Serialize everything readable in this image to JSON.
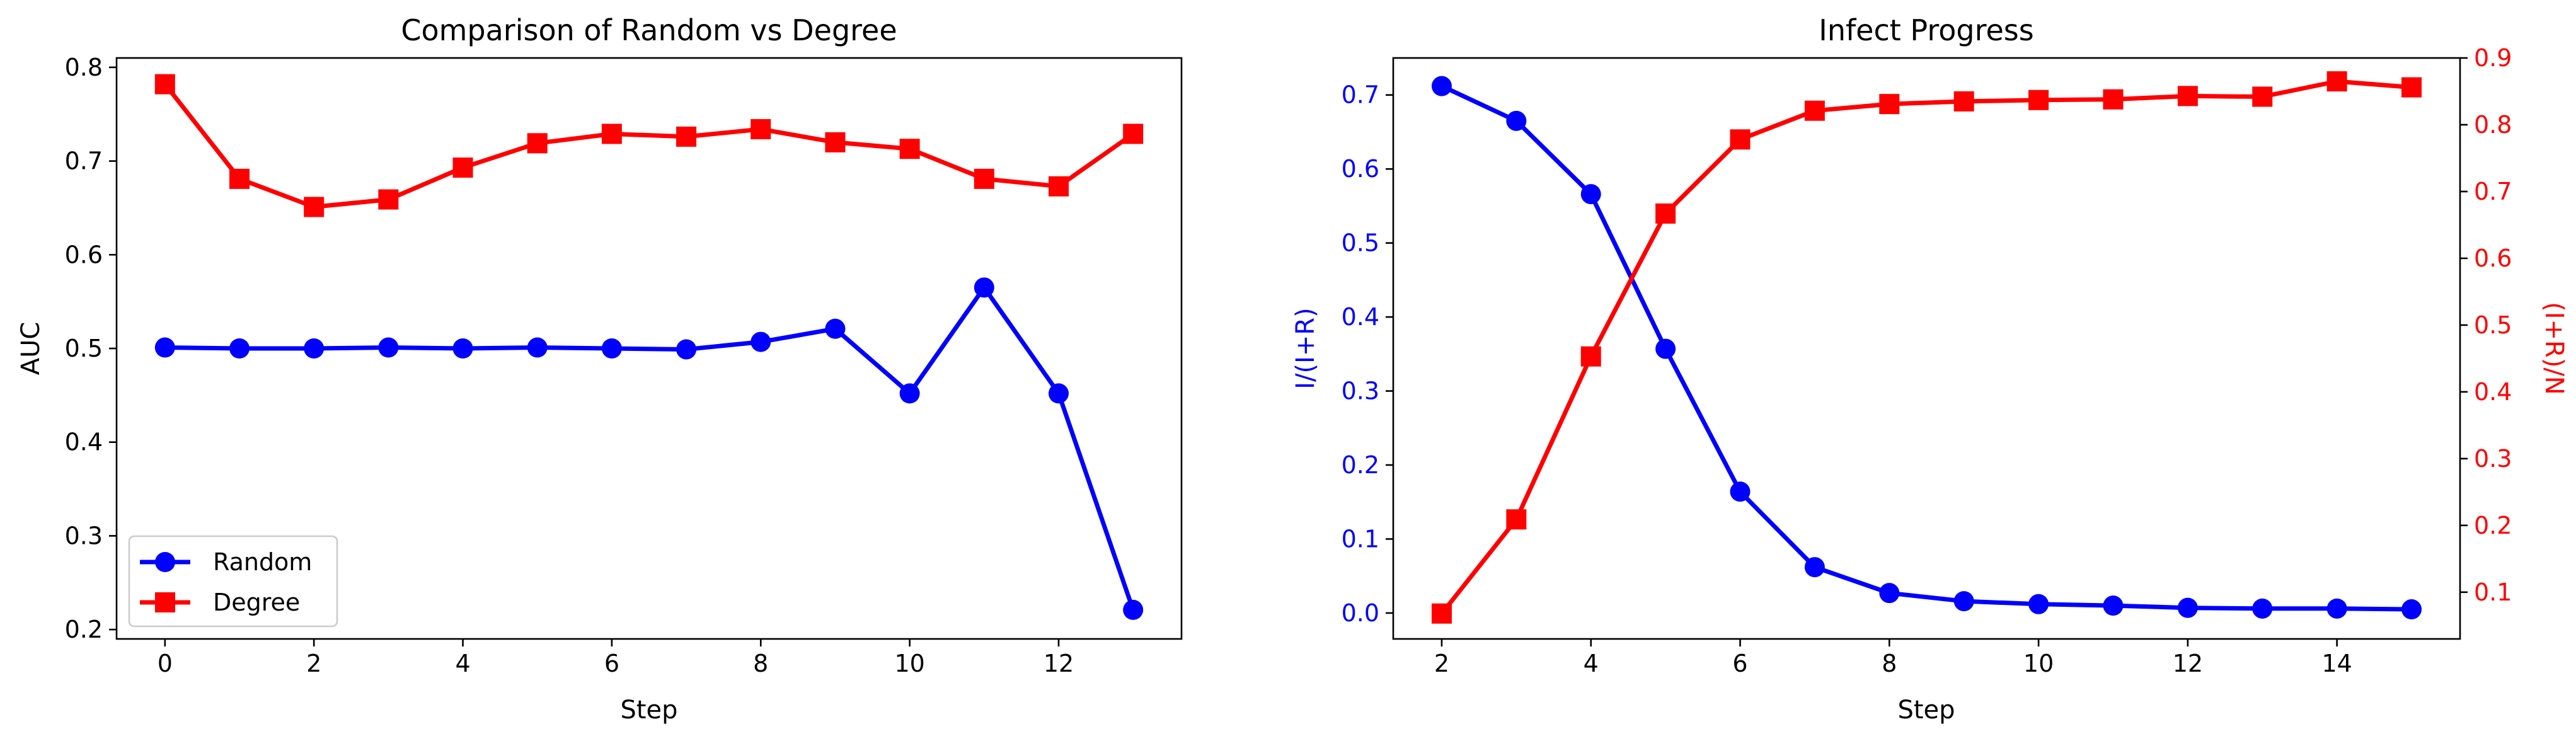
{
  "chart_data": [
    {
      "type": "line",
      "title": "Comparison of Random vs Degree",
      "xlabel": "Step",
      "ylabel": "AUC",
      "xlim": [
        -0.65,
        13.65
      ],
      "ylim": [
        0.19,
        0.81
      ],
      "xticks": [
        "0",
        "2",
        "4",
        "6",
        "8",
        "10",
        "12"
      ],
      "yticks": [
        "0.2",
        "0.3",
        "0.4",
        "0.5",
        "0.6",
        "0.7",
        "0.8"
      ],
      "legend": "lower-left",
      "grid": false,
      "x": [
        0,
        1,
        2,
        3,
        4,
        5,
        6,
        7,
        8,
        9,
        10,
        11,
        12,
        13
      ],
      "series": [
        {
          "name": "Random",
          "color": "#0000ff",
          "marker": "circle",
          "values": [
            0.501,
            0.5,
            0.5,
            0.501,
            0.5,
            0.501,
            0.5,
            0.499,
            0.507,
            0.521,
            0.452,
            0.565,
            0.452,
            0.221
          ]
        },
        {
          "name": "Degree",
          "color": "#ff0000",
          "marker": "square",
          "values": [
            0.782,
            0.681,
            0.651,
            0.659,
            0.693,
            0.719,
            0.729,
            0.726,
            0.734,
            0.72,
            0.713,
            0.681,
            0.673,
            0.729
          ]
        }
      ]
    },
    {
      "type": "line",
      "title": "Infect Progress",
      "xlabel": "Step",
      "ylabel": "I/(I+R)",
      "ylabel_color": "#0000ff",
      "y2label": "(I+R)/N",
      "y2label_color": "#ff0000",
      "xlim": [
        1.35,
        15.65
      ],
      "ylim": [
        -0.035,
        0.75
      ],
      "y2lim": [
        0.03,
        0.9
      ],
      "xticks": [
        "2",
        "4",
        "6",
        "8",
        "10",
        "12",
        "14"
      ],
      "yticks": [
        "0.0",
        "0.1",
        "0.2",
        "0.3",
        "0.4",
        "0.5",
        "0.6",
        "0.7"
      ],
      "y2ticks": [
        "0.1",
        "0.2",
        "0.3",
        "0.4",
        "0.5",
        "0.6",
        "0.7",
        "0.8",
        "0.9"
      ],
      "grid": false,
      "x": [
        2,
        3,
        4,
        5,
        6,
        7,
        8,
        9,
        10,
        11,
        12,
        13,
        14,
        15
      ],
      "series": [
        {
          "axis": "left",
          "color": "#0000ff",
          "marker": "circle",
          "values": [
            0.712,
            0.665,
            0.566,
            0.357,
            0.164,
            0.062,
            0.027,
            0.016,
            0.012,
            0.01,
            0.007,
            0.006,
            0.006,
            0.005
          ]
        },
        {
          "axis": "right",
          "color": "#ff0000",
          "marker": "square",
          "values": [
            0.068,
            0.209,
            0.453,
            0.667,
            0.778,
            0.821,
            0.831,
            0.835,
            0.837,
            0.838,
            0.843,
            0.842,
            0.865,
            0.856
          ]
        }
      ]
    }
  ]
}
